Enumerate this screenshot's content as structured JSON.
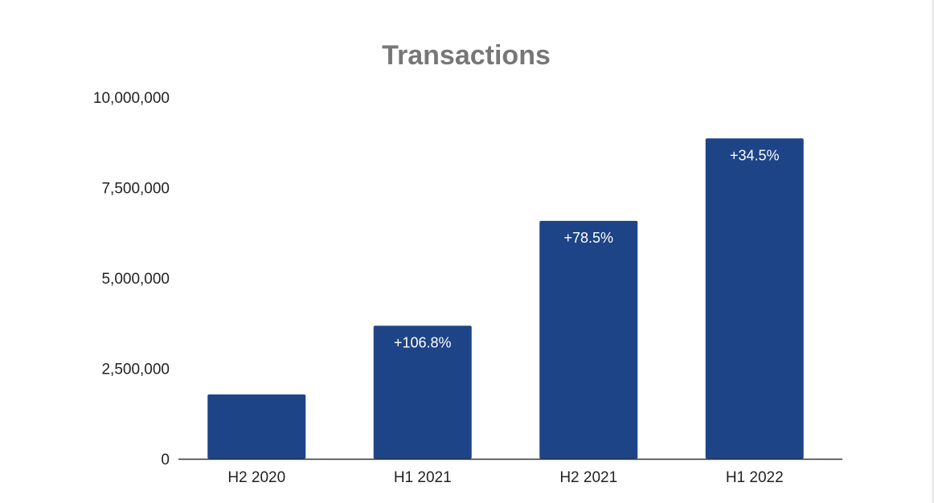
{
  "chart_data": {
    "type": "bar",
    "title": "Transactions",
    "xlabel": "",
    "ylabel": "",
    "categories": [
      "H2 2020",
      "H1 2021",
      "H2 2021",
      "H1 2022"
    ],
    "values": [
      1780000,
      3680000,
      6580000,
      8860000
    ],
    "data_labels": [
      "",
      "+106.8%",
      "+78.5%",
      "+34.5%"
    ],
    "ylim": [
      0,
      10000000
    ],
    "yticks": [
      0,
      2500000,
      5000000,
      7500000,
      10000000
    ],
    "ytick_labels": [
      "0",
      "2,500,000",
      "5,000,000",
      "7,500,000",
      "10,000,000"
    ],
    "grid": false,
    "bar_color": "#1d4486",
    "axis_color": "#333333",
    "title_color": "#777777"
  }
}
